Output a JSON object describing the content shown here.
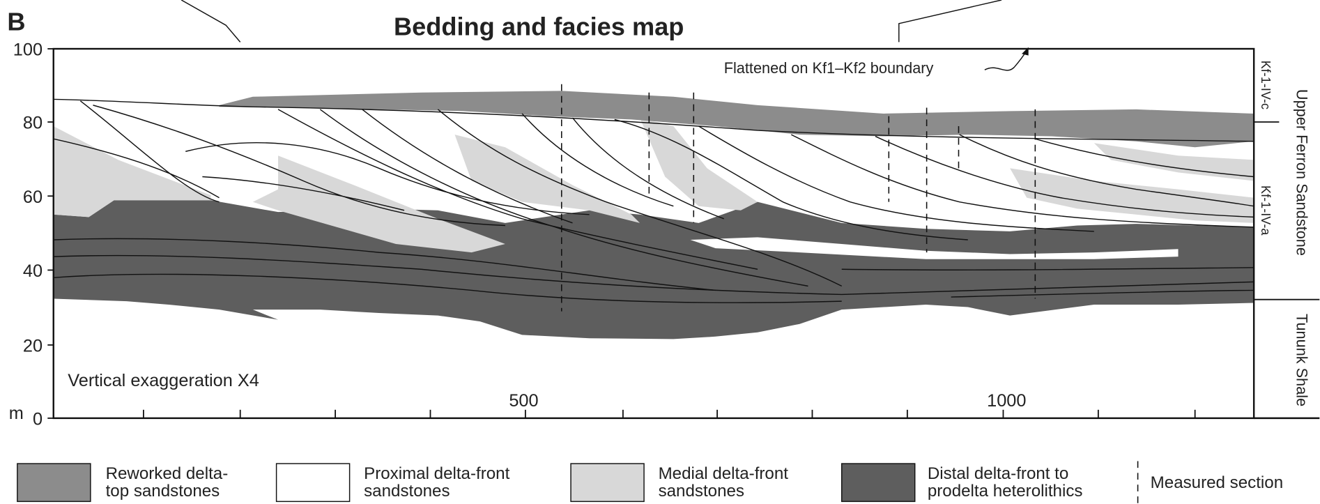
{
  "panel_label": "B",
  "title": "Bedding and facies map",
  "annotation": "Flattened on Kf1–Kf2 boundary",
  "exaggeration_note": "Vertical exaggeration X4",
  "y_axis": {
    "unit": "m",
    "tick_labels": [
      "100",
      "80",
      "60",
      "40",
      "20",
      "0"
    ]
  },
  "x_axis": {
    "tick_labels": [
      "500",
      "1000"
    ]
  },
  "units": [
    "Kf-1-IV-c",
    "Kf-1-IV-a",
    "Tununk Shale"
  ],
  "formation": "Upper Ferron Sandstone",
  "legend": [
    {
      "lines": [
        "Reworked delta-",
        "top sandstones"
      ]
    },
    {
      "lines": [
        "Proximal delta-front",
        "sandstones"
      ]
    },
    {
      "lines": [
        "Medial delta-front",
        "sandstones"
      ]
    },
    {
      "lines": [
        "Distal delta-front to",
        "prodelta heterolithics"
      ]
    },
    {
      "lines": [
        "Measured section"
      ]
    }
  ]
}
